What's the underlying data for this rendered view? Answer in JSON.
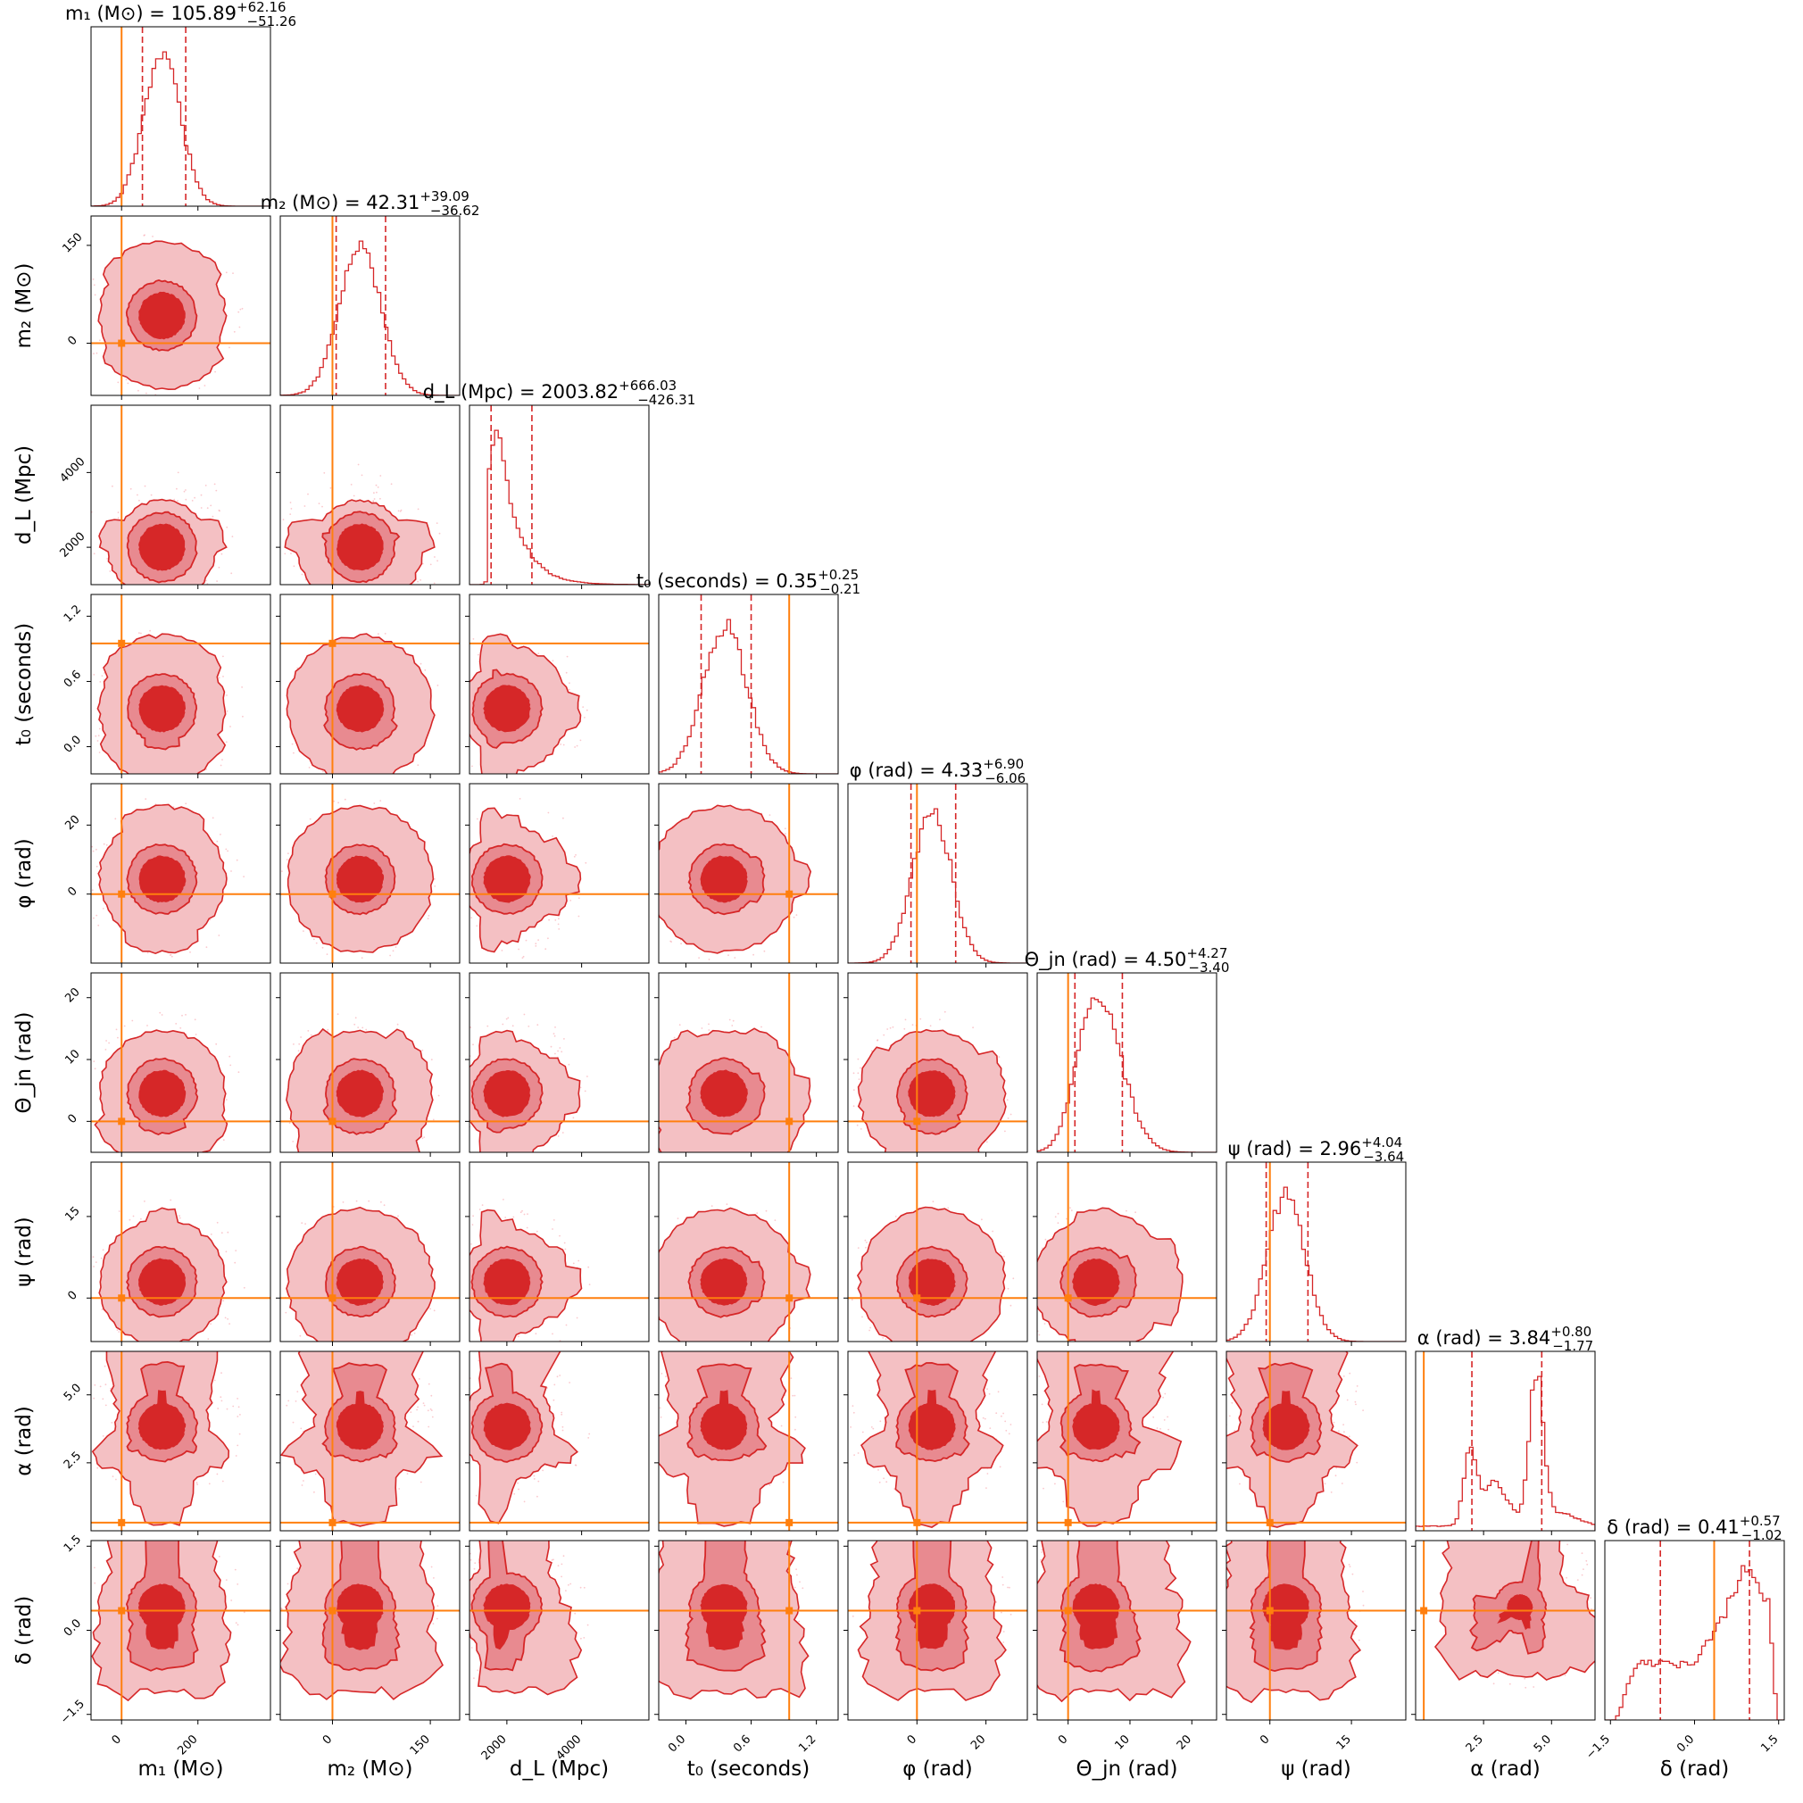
{
  "figure": {
    "kind": "corner plot",
    "colors": {
      "posterior": "#d62728",
      "contour_outer": "#f4c0c3",
      "contour_mid": "#e88a90",
      "contour_inner": "#d62728",
      "truth": "#ff7f0e",
      "axes": "#000000"
    }
  },
  "chart_data": {
    "type": "corner",
    "grid": false,
    "parameters": [
      {
        "key": "m1",
        "label": "m₁ (M⊙)",
        "title_name": "m₁ (M⊙) = 105.89",
        "median": 105.89,
        "plus": "+62.16",
        "minus": "−51.26",
        "range": [
          -80,
          390
        ],
        "ticks": [
          0,
          200
        ],
        "tick_labels": [
          "0",
          "200"
        ],
        "truth": 0,
        "lo": 54.63,
        "hi": 168.05
      },
      {
        "key": "m2",
        "label": "m₂ (M⊙)",
        "title_name": "m₂ (M⊙) = 42.31",
        "median": 42.31,
        "plus": "+39.09",
        "minus": "−36.62",
        "range": [
          -80,
          195
        ],
        "ticks": [
          0,
          150
        ],
        "tick_labels": [
          "0",
          "150"
        ],
        "truth": 0,
        "lo": 5.69,
        "hi": 81.4
      },
      {
        "key": "dL",
        "label": "d_L (Mpc)",
        "title_name": "d_L (Mpc) = 2003.82",
        "median": 2003.82,
        "plus": "+666.03",
        "minus": "−426.31",
        "range": [
          1000,
          5800
        ],
        "ticks": [
          2000,
          4000
        ],
        "tick_labels": [
          "2000",
          "4000"
        ],
        "truth": null,
        "lo": 1577.51,
        "hi": 2669.85
      },
      {
        "key": "t0",
        "label": "t₀ (seconds)",
        "title_name": "t₀ (seconds) = 0.35",
        "median": 0.35,
        "plus": "+0.25",
        "minus": "−0.21",
        "range": [
          -0.25,
          1.4
        ],
        "ticks": [
          0.0,
          0.6,
          1.2
        ],
        "tick_labels": [
          "0.0",
          "0.6",
          "1.2"
        ],
        "truth": 0.95,
        "lo": 0.14,
        "hi": 0.6
      },
      {
        "key": "phi",
        "label": "φ (rad)",
        "title_name": "φ (rad) = 4.33",
        "median": 4.33,
        "plus": "+6.90",
        "minus": "−6.06",
        "range": [
          -20,
          32
        ],
        "ticks": [
          0,
          20
        ],
        "tick_labels": [
          "0",
          "20"
        ],
        "truth": 0,
        "lo": -1.73,
        "hi": 11.23
      },
      {
        "key": "theta",
        "label": "Θ_jn (rad)",
        "title_name": "Θ_jn (rad) = 4.50",
        "median": 4.5,
        "plus": "+4.27",
        "minus": "−3.40",
        "range": [
          -5,
          24
        ],
        "ticks": [
          0,
          10,
          20
        ],
        "tick_labels": [
          "0",
          "10",
          "20"
        ],
        "truth": 0,
        "lo": 1.1,
        "hi": 8.77
      },
      {
        "key": "psi",
        "label": "ψ (rad)",
        "title_name": "ψ (rad) = 2.96",
        "median": 2.96,
        "plus": "+4.04",
        "minus": "−3.64",
        "range": [
          -8,
          25
        ],
        "ticks": [
          0,
          15
        ],
        "tick_labels": [
          "0",
          "15"
        ],
        "truth": 0,
        "lo": -0.68,
        "hi": 7.0
      },
      {
        "key": "alpha",
        "label": "α (rad)",
        "title_name": "α (rad) = 3.84",
        "median": 3.84,
        "plus": "+0.80",
        "minus": "−1.77",
        "range": [
          0,
          6.6
        ],
        "ticks": [
          2.5,
          5.0
        ],
        "tick_labels": [
          "2.5",
          "5.0"
        ],
        "truth": 0.3,
        "lo": 2.07,
        "hi": 4.64
      },
      {
        "key": "delta",
        "label": "δ (rad)",
        "title_name": "δ (rad) = 0.41",
        "median": 0.41,
        "plus": "+0.57",
        "minus": "−1.02",
        "range": [
          -1.6,
          1.6
        ],
        "ticks": [
          -1.5,
          0.0,
          1.5
        ],
        "tick_labels": [
          "−1.5",
          "0.0",
          "1.5"
        ],
        "truth": 0.35,
        "lo": -0.61,
        "hi": 0.98
      }
    ]
  }
}
